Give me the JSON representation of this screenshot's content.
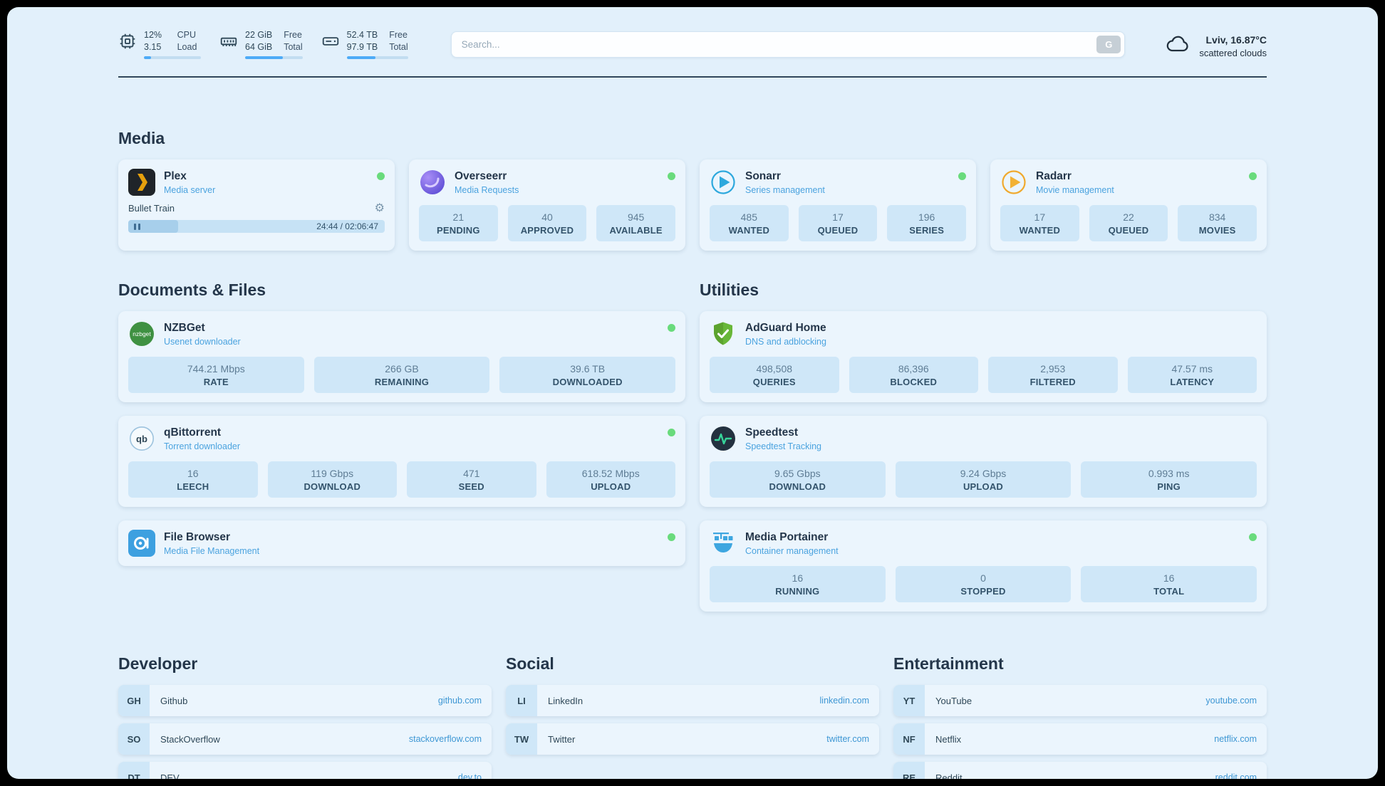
{
  "colors": {
    "accent": "#4dabf7",
    "status_online": "#69db7c",
    "link": "#3e97d4",
    "page_bg": "#e2f0fb",
    "card_bg": "#ebf5fd",
    "tile_bg": "#cfe7f8"
  },
  "header": {
    "cpu": {
      "value": "12%",
      "load": "3.15",
      "label_top": "CPU",
      "label_bottom": "Load",
      "bar_percent": 12
    },
    "ram": {
      "free": "22 GiB",
      "total": "64 GiB",
      "label_top": "Free",
      "label_bottom": "Total",
      "bar_percent": 66
    },
    "disk": {
      "free": "52.4 TB",
      "total": "97.9 TB",
      "label_top": "Free",
      "label_bottom": "Total",
      "bar_percent": 47
    },
    "search": {
      "placeholder": "Search...",
      "engine_key": "G"
    },
    "weather": {
      "location": "Lviv, 16.87°C",
      "condition": "scattered clouds"
    }
  },
  "sections": {
    "media": {
      "title": "Media",
      "apps": [
        {
          "name": "Plex",
          "desc": "Media server",
          "status": "online",
          "player": {
            "title": "Bullet Train",
            "time": "24:44 / 02:06:47",
            "progress_percent": 19.5
          }
        },
        {
          "name": "Overseerr",
          "desc": "Media Requests",
          "status": "online",
          "stats": [
            {
              "value": "21",
              "label": "PENDING"
            },
            {
              "value": "40",
              "label": "APPROVED"
            },
            {
              "value": "945",
              "label": "AVAILABLE"
            }
          ]
        },
        {
          "name": "Sonarr",
          "desc": "Series management",
          "status": "online",
          "stats": [
            {
              "value": "485",
              "label": "WANTED"
            },
            {
              "value": "17",
              "label": "QUEUED"
            },
            {
              "value": "196",
              "label": "SERIES"
            }
          ]
        },
        {
          "name": "Radarr",
          "desc": "Movie management",
          "status": "online",
          "stats": [
            {
              "value": "17",
              "label": "WANTED"
            },
            {
              "value": "22",
              "label": "QUEUED"
            },
            {
              "value": "834",
              "label": "MOVIES"
            }
          ]
        }
      ]
    },
    "documents": {
      "title": "Documents & Files",
      "apps": [
        {
          "name": "NZBGet",
          "desc": "Usenet downloader",
          "status": "online",
          "stats": [
            {
              "value": "744.21 Mbps",
              "label": "RATE"
            },
            {
              "value": "266 GB",
              "label": "REMAINING"
            },
            {
              "value": "39.6 TB",
              "label": "DOWNLOADED"
            }
          ]
        },
        {
          "name": "qBittorrent",
          "desc": "Torrent downloader",
          "status": "online",
          "stats": [
            {
              "value": "16",
              "label": "LEECH"
            },
            {
              "value": "119 Gbps",
              "label": "DOWNLOAD"
            },
            {
              "value": "471",
              "label": "SEED"
            },
            {
              "value": "618.52 Mbps",
              "label": "UPLOAD"
            }
          ]
        },
        {
          "name": "File Browser",
          "desc": "Media File Management",
          "status": "online",
          "stats": []
        }
      ]
    },
    "utilities": {
      "title": "Utilities",
      "apps": [
        {
          "name": "AdGuard Home",
          "desc": "DNS and adblocking",
          "stats": [
            {
              "value": "498,508",
              "label": "QUERIES"
            },
            {
              "value": "86,396",
              "label": "BLOCKED"
            },
            {
              "value": "2,953",
              "label": "FILTERED"
            },
            {
              "value": "47.57 ms",
              "label": "LATENCY"
            }
          ]
        },
        {
          "name": "Speedtest",
          "desc": "Speedtest Tracking",
          "stats": [
            {
              "value": "9.65 Gbps",
              "label": "DOWNLOAD"
            },
            {
              "value": "9.24 Gbps",
              "label": "UPLOAD"
            },
            {
              "value": "0.993 ms",
              "label": "PING"
            }
          ]
        },
        {
          "name": "Media Portainer",
          "desc": "Container management",
          "status": "online",
          "stats": [
            {
              "value": "16",
              "label": "RUNNING"
            },
            {
              "value": "0",
              "label": "STOPPED"
            },
            {
              "value": "16",
              "label": "TOTAL"
            }
          ]
        }
      ]
    }
  },
  "bookmarks": [
    {
      "title": "Developer",
      "items": [
        {
          "abbr": "GH",
          "name": "Github",
          "url": "github.com"
        },
        {
          "abbr": "SO",
          "name": "StackOverflow",
          "url": "stackoverflow.com"
        },
        {
          "abbr": "DT",
          "name": "DEV",
          "url": "dev.to"
        }
      ]
    },
    {
      "title": "Social",
      "items": [
        {
          "abbr": "LI",
          "name": "LinkedIn",
          "url": "linkedin.com"
        },
        {
          "abbr": "TW",
          "name": "Twitter",
          "url": "twitter.com"
        }
      ]
    },
    {
      "title": "Entertainment",
      "items": [
        {
          "abbr": "YT",
          "name": "YouTube",
          "url": "youtube.com"
        },
        {
          "abbr": "NF",
          "name": "Netflix",
          "url": "netflix.com"
        },
        {
          "abbr": "RE",
          "name": "Reddit",
          "url": "reddit.com"
        }
      ]
    }
  ],
  "icons": {
    "gear": "⚙",
    "nzbget_text": "nzbget",
    "qb_text": "qb"
  }
}
